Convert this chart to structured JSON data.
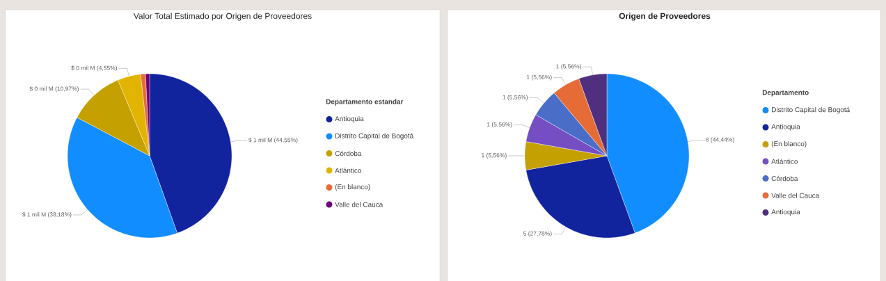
{
  "chart_data": [
    {
      "type": "pie",
      "title": "Valor Total Estimado por Origen de Proveedores",
      "legend_title": "Departamento estandar",
      "legend": "right",
      "categories": [
        "Antioquia",
        "Distrito Capital de Bogotá",
        "Córdoba",
        "Atlántico",
        "(En blanco)",
        "Valle del Cauca"
      ],
      "values": [
        44.55,
        38.18,
        10.97,
        4.55,
        0.95,
        0.8
      ],
      "colors": [
        "#12239e",
        "#118dff",
        "#c4a000",
        "#e0b400",
        "#e66c37",
        "#6b007b"
      ],
      "value_labels": [
        "$ 1 mil M (44,55%)",
        "$ 1 mil M (38,18%)",
        "$ 0 mil M (10,97%)",
        "$ 0 mil M (4,55%)",
        null,
        null
      ]
    },
    {
      "type": "pie",
      "title": "Origen de Proveedores",
      "legend_title": "Departamento",
      "legend": "right",
      "categories": [
        "Distrito Capital de Bogotá",
        "Antioquia",
        "(En blanco)",
        "Atlántico",
        "Córdoba",
        "Valle del Cauca",
        "Antioquia"
      ],
      "values": [
        8,
        5,
        1,
        1,
        1,
        1,
        1
      ],
      "colors": [
        "#118dff",
        "#12239e",
        "#c4a000",
        "#744ec2",
        "#4a6ec8",
        "#e66c37",
        "#512f7f"
      ],
      "value_labels": [
        "8 (44,44%)",
        "5 (27,78%)",
        "1 (5,56%)",
        "1 (5,56%)",
        "1 (5,56%)",
        "1 (5,56%)",
        "1 (5,56%)"
      ]
    }
  ]
}
